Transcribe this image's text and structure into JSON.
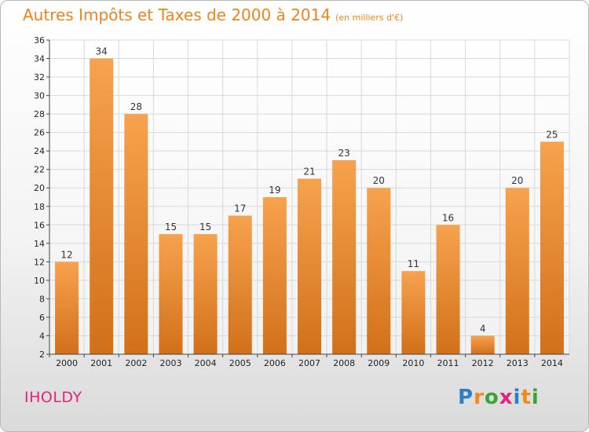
{
  "title": {
    "main": "Autres Impôts et Taxes de 2000 à 2014",
    "unit": "(en milliers d'€)"
  },
  "commune": "IHOLDY",
  "logo": {
    "letters": [
      "P",
      "r",
      "o",
      "x",
      "i",
      "t",
      "i"
    ]
  },
  "chart_data": {
    "type": "bar",
    "categories": [
      "2000",
      "2001",
      "2002",
      "2003",
      "2004",
      "2005",
      "2006",
      "2007",
      "2008",
      "2009",
      "2010",
      "2011",
      "2012",
      "2013",
      "2014"
    ],
    "values": [
      12,
      34,
      28,
      15,
      15,
      17,
      19,
      21,
      23,
      20,
      11,
      16,
      4,
      20,
      25
    ],
    "title": "Autres Impôts et Taxes de 2000 à 2014",
    "xlabel": "",
    "ylabel": "",
    "ylim": [
      2,
      36
    ],
    "yticks": [
      2,
      4,
      6,
      8,
      10,
      12,
      14,
      16,
      18,
      20,
      22,
      24,
      26,
      28,
      30,
      32,
      34,
      36
    ],
    "grid": true,
    "colors": {
      "bar_top": "#f7a24e",
      "bar_bottom": "#d2701a",
      "grid": "#d8d8d8"
    }
  }
}
